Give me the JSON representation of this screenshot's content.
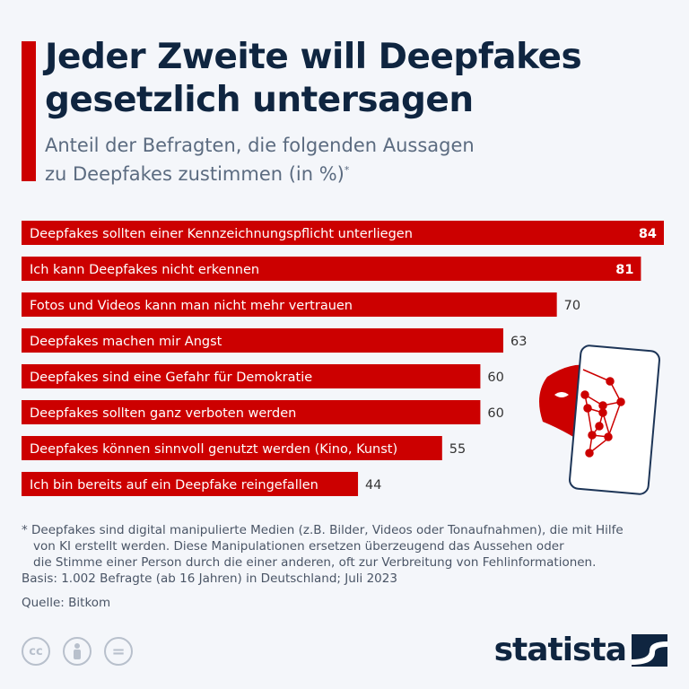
{
  "header": {
    "title_line1": "Jeder Zweite will Deepfakes",
    "title_line2": "gesetzlich untersagen",
    "subtitle_line1": "Anteil der Befragten, die folgenden Aussagen",
    "subtitle_line2": "zu Deepfakes zustimmen (in %)",
    "subtitle_mark": "*"
  },
  "chart_data": {
    "type": "bar",
    "orientation": "horizontal",
    "categories": [
      "Deepfakes sollten einer Kennzeichnungspflicht unterliegen",
      "Ich kann Deepfakes nicht erkennen",
      "Fotos und Videos kann man nicht mehr vertrauen",
      "Deepfakes machen mir Angst",
      "Deepfakes sind eine Gefahr für Demokratie",
      "Deepfakes sollten ganz verboten werden",
      "Deepfakes können sinnvoll genutzt werden (Kino, Kunst)",
      "Ich bin bereits auf ein Deepfake reingefallen"
    ],
    "values": [
      84,
      81,
      70,
      63,
      60,
      60,
      55,
      44
    ],
    "xlim": [
      0,
      84
    ],
    "bar_color": "#cc0000",
    "grid": false
  },
  "footer": {
    "footnote_line1": "* Deepfakes sind digital manipulierte Medien (z.B. Bilder, Videos oder Tonaufnahmen), die mit Hilfe",
    "footnote_line2": "von KI erstellt werden. Diese Manipulationen ersetzen überzeugend das Aussehen oder",
    "footnote_line3": "die Stimme einer Person durch die einer anderen, oft zur Verbreitung von Fehlinformationen.",
    "basis": "Basis: 1.002 Befragte (ab 16 Jahren) in Deutschland; Juli 2023",
    "source": "Quelle: Bitkom",
    "cc": "cc",
    "eq": "=",
    "logo": "statista"
  }
}
